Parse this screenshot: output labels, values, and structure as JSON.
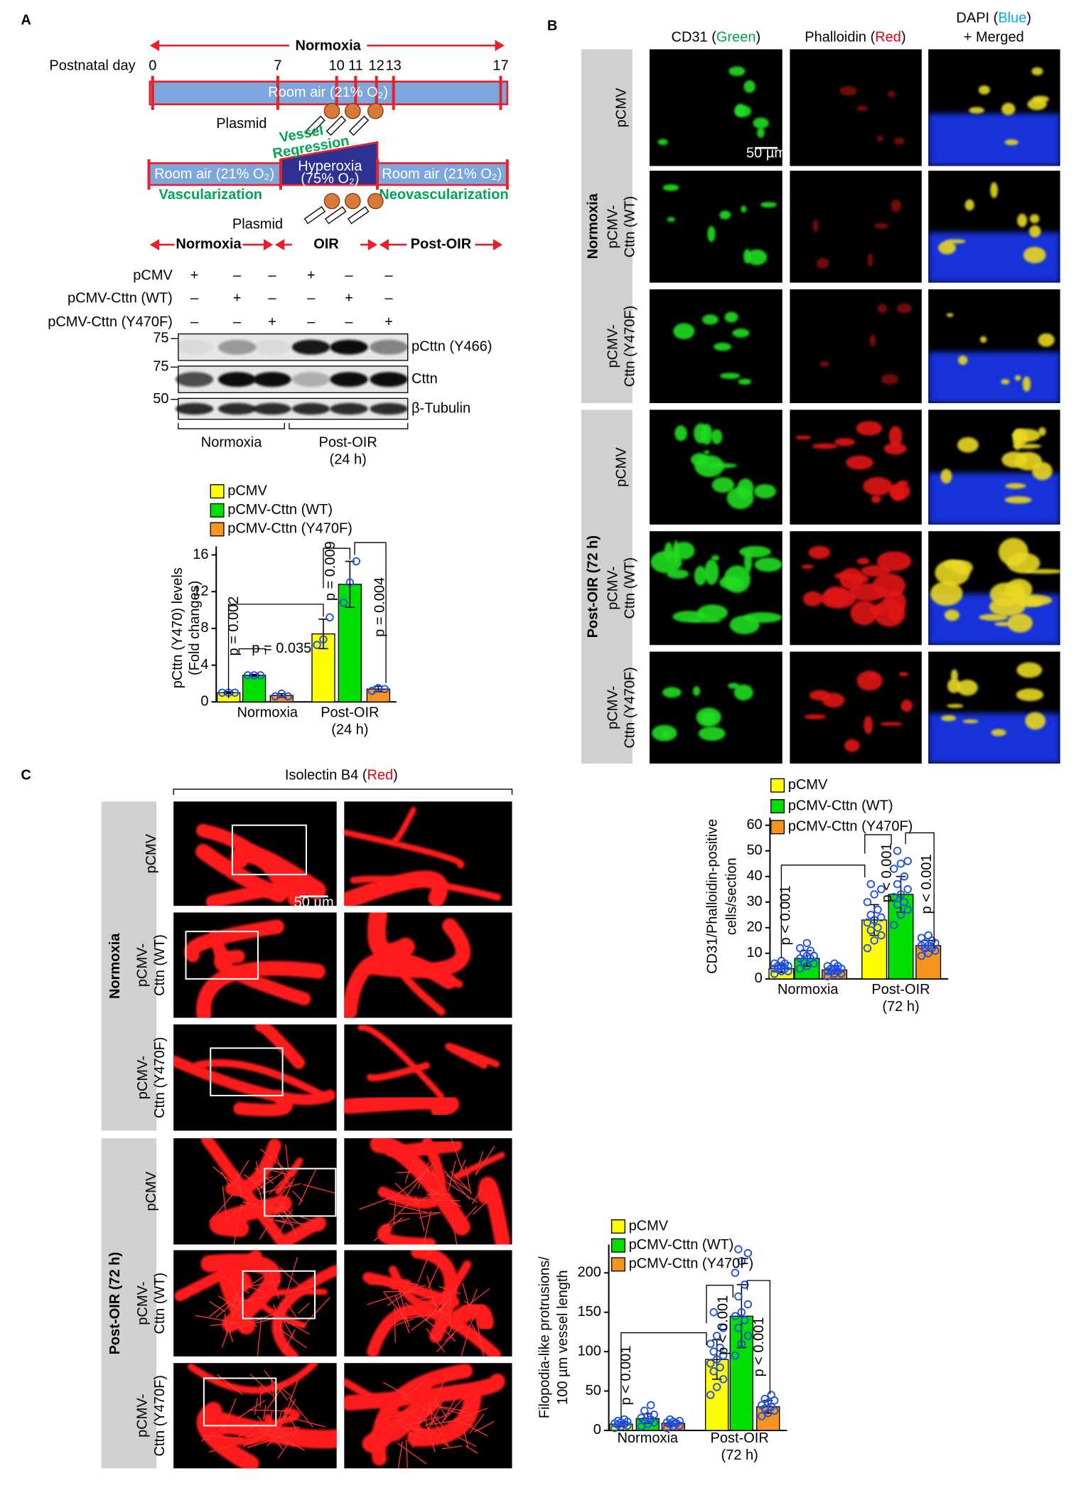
{
  "panel_labels": [
    "A",
    "B",
    "C"
  ],
  "timeline": {
    "top_label": "Normoxia",
    "day_label": "Postnatal day",
    "days": [
      0,
      7,
      10,
      11,
      12,
      13,
      17
    ],
    "room_air": "Room air (21% O₂)",
    "plasmid": "Plasmid",
    "vessel_regression": [
      "Vessel",
      "Regression"
    ],
    "hyperoxia": [
      "Hyperoxia",
      "(75% O₂)"
    ],
    "vascularization": "Vascularization",
    "neovascularization": "Neovascularization",
    "phases": [
      "Normoxia",
      "OIR",
      "Post-OIR"
    ]
  },
  "blot": {
    "conditions": [
      {
        "name": "pCMV",
        "signs": [
          "+",
          "–",
          "–",
          "+",
          "–",
          "–"
        ]
      },
      {
        "name": "pCMV-Cttn (WT)",
        "signs": [
          "–",
          "+",
          "–",
          "–",
          "+",
          "–"
        ]
      },
      {
        "name": "pCMV-Cttn (Y470F)",
        "signs": [
          "–",
          "–",
          "+",
          "–",
          "–",
          "+"
        ]
      }
    ],
    "markers": [
      75,
      75,
      50
    ],
    "bands": [
      "pCttn (Y466)",
      "Cttn",
      "β-Tubulin"
    ],
    "groups": [
      [
        "Normoxia"
      ],
      [
        "Post-OIR",
        "(24 h)"
      ]
    ]
  },
  "panel_b": {
    "columns": [
      {
        "prefix": "CD31 (",
        "word": "Green",
        "suffix": ")",
        "color": "#00a651"
      },
      {
        "prefix": "Phalloidin (",
        "word": "Red",
        "suffix": ")",
        "color": "#e3000f"
      },
      {
        "prefix": "DAPI (",
        "word": "Blue",
        "suffix": ")",
        "color": "#00aeef",
        "line2": "+ Merged"
      }
    ],
    "groups": [
      "Normoxia",
      "Post-OIR (72 h)"
    ],
    "row_labels": [
      [
        "pCMV"
      ],
      [
        "pCMV-",
        "Cttn (WT)"
      ],
      [
        "pCMV-",
        "Cttn (Y470F)"
      ]
    ],
    "scale_bar": "50 µm"
  },
  "panel_c": {
    "title": {
      "prefix": "Isolectin B4 (",
      "word": "Red",
      "suffix": ")",
      "color": "#e3000f"
    },
    "groups": [
      "Normoxia",
      "Post-OIR (72 h)"
    ],
    "row_labels": [
      [
        "pCMV"
      ],
      [
        "pCMV-",
        "Cttn (WT)"
      ],
      [
        "pCMV-",
        "Cttn (Y470F)"
      ]
    ],
    "scale_bar": "50 µm"
  },
  "chart_data": [
    {
      "type": "bar",
      "ylabel": [
        "pCttn (Y470) levels",
        "(Fold changes)"
      ],
      "categories": [
        [
          "Normoxia"
        ],
        [
          "Post-OIR",
          "(24 h)"
        ]
      ],
      "series": [
        {
          "name": "pCMV",
          "color": "#ffff00",
          "values": [
            1.0,
            7.4
          ],
          "errors": [
            0.1,
            1.6
          ],
          "points": [
            [
              1.0,
              1.0,
              1.0
            ],
            [
              6.2,
              6.8,
              9.2
            ]
          ]
        },
        {
          "name": "pCMV-Cttn (WT)",
          "color": "#00e000",
          "values": [
            2.9,
            12.8
          ],
          "errors": [
            0.1,
            2.5
          ],
          "points": [
            [
              2.9,
              2.9,
              2.9
            ],
            [
              10.8,
              13.0,
              15.3
            ]
          ]
        },
        {
          "name": "pCMV-Cttn (Y470F)",
          "color": "#f7941d",
          "values": [
            0.7,
            1.4
          ],
          "errors": [
            0.2,
            0.3
          ],
          "points": [
            [
              0.6,
              0.9,
              0.6
            ],
            [
              1.2,
              1.5,
              1.4
            ]
          ]
        }
      ],
      "ylim": [
        0,
        16
      ],
      "yticks": [
        0,
        4,
        8,
        12,
        16
      ],
      "annotations": [
        "p = 0.002",
        "p = 0.035",
        "p = 0.009",
        "p = 0.004"
      ]
    },
    {
      "type": "bar",
      "ylabel": [
        "CD31/Phalloidin-positive",
        "cells/section"
      ],
      "categories": [
        [
          "Normoxia"
        ],
        [
          "Post-OIR",
          "(72 h)"
        ]
      ],
      "series": [
        {
          "name": "pCMV",
          "color": "#ffff00",
          "values": [
            4,
            23
          ],
          "errors": [
            1.5,
            6
          ],
          "points": [
            [
              2,
              3,
              3,
              4,
              4,
              4,
              5,
              5,
              5,
              6,
              6,
              7
            ],
            [
              12,
              15,
              17,
              19,
              20,
              22,
              23,
              24,
              25,
              27,
              30,
              33,
              35,
              37
            ]
          ]
        },
        {
          "name": "pCMV-Cttn (WT)",
          "color": "#00e000",
          "values": [
            8,
            33
          ],
          "errors": [
            3,
            7
          ],
          "points": [
            [
              4,
              5,
              6,
              7,
              8,
              8,
              9,
              9,
              10,
              11,
              12,
              14
            ],
            [
              21,
              25,
              27,
              29,
              30,
              32,
              33,
              35,
              37,
              40,
              43,
              45,
              46,
              50
            ]
          ]
        },
        {
          "name": "pCMV-Cttn (Y470F)",
          "color": "#f7941d",
          "values": [
            3.5,
            13
          ],
          "errors": [
            1.5,
            2
          ],
          "points": [
            [
              1,
              2,
              2,
              3,
              3,
              3,
              4,
              4,
              4,
              5,
              5,
              6
            ],
            [
              9,
              10,
              11,
              12,
              12,
              13,
              13,
              14,
              14,
              15,
              16,
              17
            ]
          ]
        }
      ],
      "ylim": [
        0,
        60
      ],
      "yticks": [
        0,
        10,
        20,
        30,
        40,
        50,
        60
      ],
      "annotations": [
        "p < 0.001",
        "p < 0.001",
        "p < 0.001"
      ]
    },
    {
      "type": "bar",
      "ylabel": [
        "Filopodia-like protrusions/",
        "100 µm vessel length"
      ],
      "categories": [
        [
          "Normoxia"
        ],
        [
          "Post-OIR",
          "(72 h)"
        ]
      ],
      "series": [
        {
          "name": "pCMV",
          "color": "#ffff00",
          "values": [
            8,
            90
          ],
          "errors": [
            3,
            25
          ],
          "points": [
            [
              3,
              5,
              6,
              7,
              8,
              9,
              10,
              11,
              12,
              14
            ],
            [
              45,
              55,
              65,
              75,
              80,
              85,
              90,
              95,
              100,
              105,
              110,
              120,
              130,
              150
            ]
          ]
        },
        {
          "name": "pCMV-Cttn (WT)",
          "color": "#00e000",
          "values": [
            15,
            145
          ],
          "errors": [
            6,
            40
          ],
          "points": [
            [
              5,
              8,
              10,
              12,
              14,
              16,
              18,
              20,
              25,
              32
            ],
            [
              95,
              110,
              120,
              130,
              140,
              145,
              150,
              160,
              170,
              185,
              200,
              215,
              225,
              230
            ]
          ]
        },
        {
          "name": "pCMV-Cttn (Y470F)",
          "color": "#f7941d",
          "values": [
            9,
            30
          ],
          "errors": [
            3,
            8
          ],
          "points": [
            [
              3,
              5,
              6,
              8,
              9,
              10,
              11,
              12,
              14
            ],
            [
              18,
              22,
              25,
              28,
              30,
              32,
              35,
              38,
              40,
              45
            ]
          ]
        }
      ],
      "ylim": [
        0,
        230
      ],
      "yticks": [
        0,
        50,
        100,
        150,
        200
      ],
      "annotations": [
        "p < 0.001",
        "p < 0.001",
        "p < 0.001"
      ]
    }
  ]
}
